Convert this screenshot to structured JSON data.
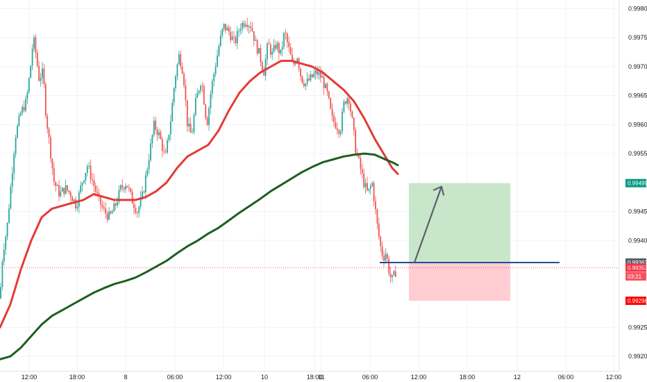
{
  "chart_data": {
    "type": "candlestick",
    "title": "",
    "xlabel": "",
    "ylabel": "",
    "ylim": [
      0.99175,
      0.99815
    ],
    "grid": true,
    "y_ticks": [
      "0.99800",
      "0.99750",
      "0.99700",
      "0.99650",
      "0.99600",
      "0.99550",
      "0.99450",
      "0.99400",
      "0.99250",
      "0.99200"
    ],
    "x_ticks": [
      "12:00",
      "18:00",
      "8",
      "06:00",
      "12:00",
      "10",
      "18:00",
      "11",
      "06:00",
      "12:00",
      "18:00",
      "12",
      "06:00",
      "12:00"
    ],
    "price_tags": [
      {
        "label": "0.99499",
        "value": 0.99499,
        "color": "#089981"
      },
      {
        "label": "0.99362",
        "value": 0.99362,
        "color": "#5d606b"
      },
      {
        "label": "0.99353",
        "value": 0.99353,
        "color": "#f23645"
      },
      {
        "label": "03:21",
        "value": 0.99338,
        "color": "#f7525f"
      },
      {
        "label": "0.99296",
        "value": 0.99296,
        "color": "#ff0000"
      }
    ],
    "current_price": 0.99353,
    "price_path": [
      [
        0,
        0.993
      ],
      [
        4,
        0.9938
      ],
      [
        10,
        0.9942
      ],
      [
        16,
        0.995
      ],
      [
        22,
        0.9958
      ],
      [
        30,
        0.9962
      ],
      [
        38,
        0.9964
      ],
      [
        44,
        0.997
      ],
      [
        48,
        0.9975
      ],
      [
        52,
        0.9972
      ],
      [
        56,
        0.9968
      ],
      [
        62,
        0.9969
      ],
      [
        66,
        0.9962
      ],
      [
        72,
        0.9956
      ],
      [
        78,
        0.995
      ],
      [
        86,
        0.9948
      ],
      [
        94,
        0.9949
      ],
      [
        102,
        0.9948
      ],
      [
        110,
        0.9946
      ],
      [
        118,
        0.995
      ],
      [
        126,
        0.9953
      ],
      [
        134,
        0.995
      ],
      [
        142,
        0.9947
      ],
      [
        150,
        0.9945
      ],
      [
        158,
        0.9944
      ],
      [
        166,
        0.9946
      ],
      [
        174,
        0.9949
      ],
      [
        182,
        0.995
      ],
      [
        190,
        0.9947
      ],
      [
        198,
        0.9945
      ],
      [
        206,
        0.9948
      ],
      [
        214,
        0.9954
      ],
      [
        222,
        0.996
      ],
      [
        230,
        0.9958
      ],
      [
        238,
        0.9954
      ],
      [
        246,
        0.9961
      ],
      [
        252,
        0.9968
      ],
      [
        258,
        0.9972
      ],
      [
        264,
        0.9969
      ],
      [
        270,
        0.996
      ],
      [
        276,
        0.9958
      ],
      [
        282,
        0.9964
      ],
      [
        290,
        0.9968
      ],
      [
        298,
        0.996
      ],
      [
        304,
        0.9966
      ],
      [
        310,
        0.997
      ],
      [
        316,
        0.9974
      ],
      [
        322,
        0.9977
      ],
      [
        330,
        0.9976
      ],
      [
        338,
        0.9974
      ],
      [
        346,
        0.9977
      ],
      [
        354,
        0.9978
      ],
      [
        362,
        0.9977
      ],
      [
        368,
        0.9974
      ],
      [
        374,
        0.9972
      ],
      [
        380,
        0.9969
      ],
      [
        386,
        0.9974
      ],
      [
        392,
        0.9972
      ],
      [
        398,
        0.9974
      ],
      [
        404,
        0.9972
      ],
      [
        410,
        0.9976
      ],
      [
        416,
        0.9973
      ],
      [
        422,
        0.997
      ],
      [
        428,
        0.9972
      ],
      [
        434,
        0.9968
      ],
      [
        440,
        0.9967
      ],
      [
        448,
        0.9968
      ],
      [
        456,
        0.9969
      ],
      [
        464,
        0.9968
      ],
      [
        472,
        0.9965
      ],
      [
        478,
        0.9961
      ],
      [
        484,
        0.996
      ],
      [
        490,
        0.9959
      ],
      [
        496,
        0.9964
      ],
      [
        502,
        0.9965
      ],
      [
        508,
        0.996
      ],
      [
        512,
        0.9956
      ],
      [
        518,
        0.9953
      ],
      [
        524,
        0.995
      ],
      [
        530,
        0.9948
      ],
      [
        536,
        0.995
      ],
      [
        540,
        0.9946
      ],
      [
        544,
        0.9942
      ],
      [
        548,
        0.9939
      ],
      [
        552,
        0.9937
      ],
      [
        556,
        0.9938
      ],
      [
        560,
        0.9935
      ],
      [
        564,
        0.9933
      ],
      [
        568,
        0.9934
      ],
      [
        572,
        0.99353
      ]
    ],
    "series": [
      {
        "color": "#e53935",
        "points": [
          [
            0,
            0.9925
          ],
          [
            15,
            0.9929
          ],
          [
            30,
            0.9935
          ],
          [
            45,
            0.994
          ],
          [
            60,
            0.9944
          ],
          [
            75,
            0.99455
          ],
          [
            90,
            0.9946
          ],
          [
            105,
            0.99465
          ],
          [
            120,
            0.9947
          ],
          [
            135,
            0.9948
          ],
          [
            150,
            0.99475
          ],
          [
            165,
            0.9947
          ],
          [
            180,
            0.9947
          ],
          [
            195,
            0.9947
          ],
          [
            210,
            0.99475
          ],
          [
            225,
            0.99485
          ],
          [
            240,
            0.995
          ],
          [
            255,
            0.99525
          ],
          [
            270,
            0.99545
          ],
          [
            285,
            0.99555
          ],
          [
            300,
            0.99565
          ],
          [
            315,
            0.9959
          ],
          [
            330,
            0.99625
          ],
          [
            345,
            0.99655
          ],
          [
            360,
            0.99675
          ],
          [
            375,
            0.9969
          ],
          [
            390,
            0.997
          ],
          [
            405,
            0.9971
          ],
          [
            420,
            0.9971
          ],
          [
            435,
            0.99705
          ],
          [
            450,
            0.997
          ],
          [
            465,
            0.9969
          ],
          [
            480,
            0.99675
          ],
          [
            495,
            0.9966
          ],
          [
            510,
            0.9964
          ],
          [
            525,
            0.9961
          ],
          [
            540,
            0.99575
          ],
          [
            555,
            0.99545
          ],
          [
            565,
            0.99525
          ],
          [
            573,
            0.99515
          ]
        ]
      },
      {
        "color": "#1b5e20",
        "points": [
          [
            0,
            0.99195
          ],
          [
            15,
            0.992
          ],
          [
            30,
            0.99215
          ],
          [
            45,
            0.99235
          ],
          [
            60,
            0.99255
          ],
          [
            75,
            0.9927
          ],
          [
            90,
            0.9928
          ],
          [
            105,
            0.9929
          ],
          [
            120,
            0.993
          ],
          [
            135,
            0.9931
          ],
          [
            150,
            0.99318
          ],
          [
            165,
            0.99325
          ],
          [
            180,
            0.9933
          ],
          [
            195,
            0.99336
          ],
          [
            210,
            0.99345
          ],
          [
            225,
            0.99355
          ],
          [
            240,
            0.99365
          ],
          [
            255,
            0.99378
          ],
          [
            270,
            0.9939
          ],
          [
            285,
            0.994
          ],
          [
            300,
            0.99412
          ],
          [
            315,
            0.99422
          ],
          [
            330,
            0.99435
          ],
          [
            345,
            0.99448
          ],
          [
            360,
            0.9946
          ],
          [
            375,
            0.99472
          ],
          [
            390,
            0.99485
          ],
          [
            405,
            0.99496
          ],
          [
            420,
            0.99507
          ],
          [
            435,
            0.99518
          ],
          [
            450,
            0.99527
          ],
          [
            465,
            0.99535
          ],
          [
            480,
            0.9954
          ],
          [
            495,
            0.99545
          ],
          [
            510,
            0.99548
          ],
          [
            525,
            0.9955
          ],
          [
            540,
            0.99548
          ],
          [
            555,
            0.9954
          ],
          [
            565,
            0.99535
          ],
          [
            573,
            0.9953
          ]
        ]
      }
    ],
    "position": {
      "entry": 0.99362,
      "target": 0.99499,
      "stop": 0.99296,
      "profit_color": "#c8e6c9",
      "loss_color": "#ffcdd2",
      "entry_line_color": "#1e4d9a"
    },
    "annotation_arrow": {
      "from_value": 0.99362,
      "to_value": 0.99493,
      "color": "#5d606b"
    }
  }
}
